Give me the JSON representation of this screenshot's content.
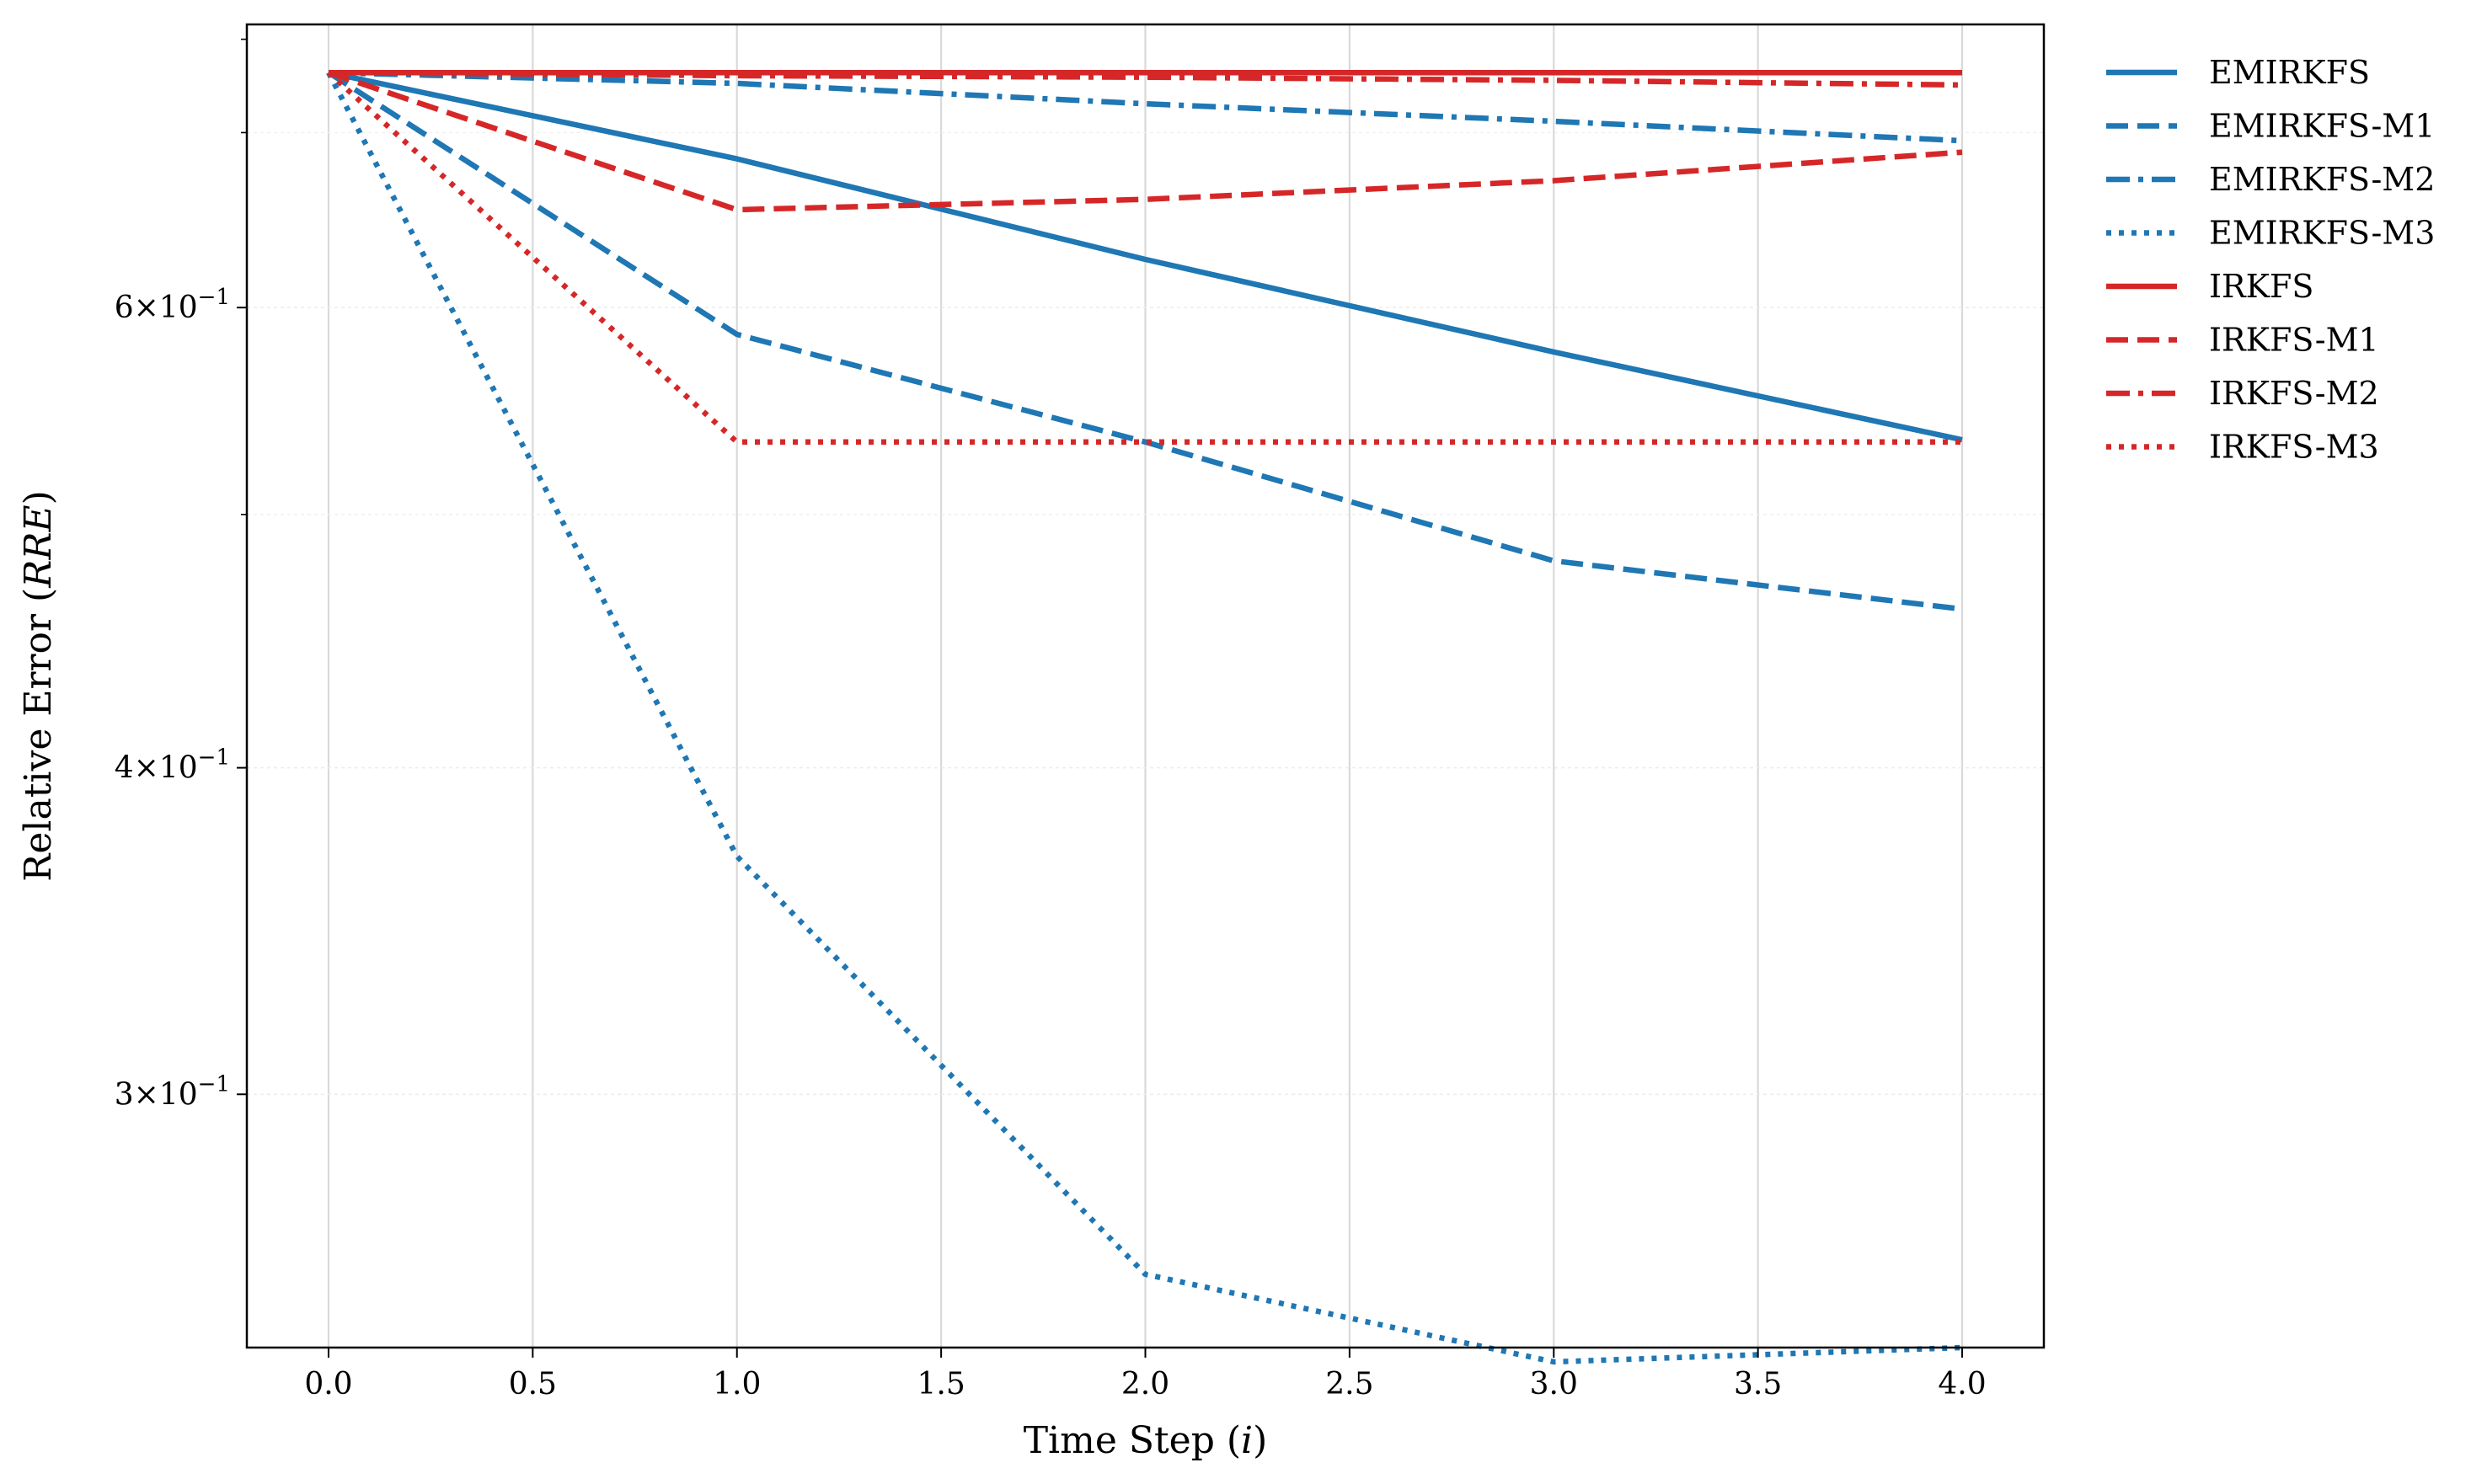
{
  "chart_data": {
    "type": "line",
    "title": "",
    "xlabel": "Time Step (i)",
    "xlabel_main": "Time Step (",
    "xlabel_var": "i",
    "xlabel_tail": ")",
    "ylabel": "Relative Error (RRE)",
    "ylabel_main": "Relative Error (",
    "ylabel_var": "RRE",
    "ylabel_tail": ")",
    "yscale": "log",
    "xlim": [
      -0.2,
      4.2
    ],
    "ylim": [
      0.24,
      0.77
    ],
    "xticks": [
      0.0,
      0.5,
      1.0,
      1.5,
      2.0,
      2.5,
      3.0,
      3.5,
      4.0
    ],
    "xtick_labels": [
      "0.0",
      "0.5",
      "1.0",
      "1.5",
      "2.0",
      "2.5",
      "3.0",
      "3.5",
      "4.0"
    ],
    "yticks": [
      {
        "value": 0.6,
        "mantissa": "6",
        "exponent": "−1"
      },
      {
        "value": 0.4,
        "mantissa": "4",
        "exponent": "−1"
      },
      {
        "value": 0.3,
        "mantissa": "3",
        "exponent": "−1"
      }
    ],
    "y_minor_ticks": [
      0.5,
      0.7
    ],
    "x": [
      0,
      1,
      2,
      3,
      4
    ],
    "grid": true,
    "legend_position": "outside-right",
    "series": [
      {
        "name": "EMIRKFS",
        "color": "#1f77b4",
        "style": "solid",
        "values": [
          0.738,
          0.684,
          0.626,
          0.577,
          0.534
        ]
      },
      {
        "name": "EMIRKFS-M1",
        "color": "#1f77b4",
        "style": "dashed",
        "values": [
          0.738,
          0.586,
          0.533,
          0.48,
          0.46
        ]
      },
      {
        "name": "EMIRKFS-M2",
        "color": "#1f77b4",
        "style": "dashdot",
        "values": [
          0.738,
          0.731,
          0.718,
          0.707,
          0.695
        ]
      },
      {
        "name": "EMIRKFS-M3",
        "color": "#1f77b4",
        "style": "dotted",
        "values": [
          0.738,
          0.37,
          0.256,
          0.237,
          0.24
        ]
      },
      {
        "name": "IRKFS",
        "color": "#d62728",
        "style": "solid",
        "values": [
          0.738,
          0.738,
          0.738,
          0.738,
          0.738
        ]
      },
      {
        "name": "IRKFS-M1",
        "color": "#d62728",
        "style": "dashed",
        "values": [
          0.738,
          0.654,
          0.66,
          0.671,
          0.688
        ]
      },
      {
        "name": "IRKFS-M2",
        "color": "#d62728",
        "style": "dashdot",
        "values": [
          0.738,
          0.736,
          0.735,
          0.733,
          0.73
        ]
      },
      {
        "name": "IRKFS-M3",
        "color": "#d62728",
        "style": "dotted",
        "values": [
          0.738,
          0.533,
          0.533,
          0.533,
          0.533
        ]
      }
    ]
  }
}
